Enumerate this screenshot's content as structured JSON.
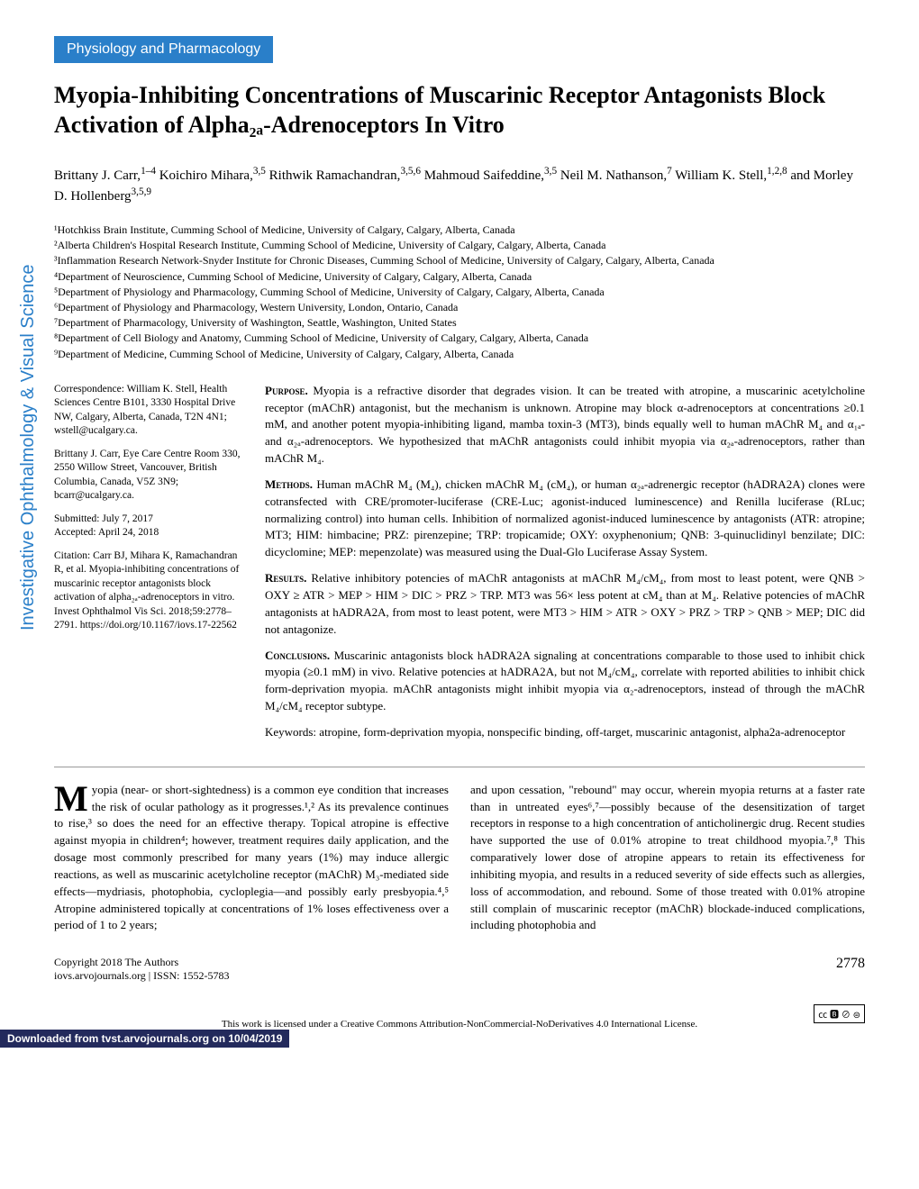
{
  "vertical_label": "Investigative Ophthalmology & Visual Science",
  "section_banner": "Physiology and Pharmacology",
  "title": "Myopia-Inhibiting Concentrations of Muscarinic Receptor Antagonists Block Activation of Alpha₂ₐ-Adrenoceptors In Vitro",
  "authors_html": "Brittany J. Carr,<sup>1–4</sup> Koichiro Mihara,<sup>3,5</sup> Rithwik Ramachandran,<sup>3,5,6</sup> Mahmoud Saifeddine,<sup>3,5</sup> Neil M. Nathanson,<sup>7</sup> William K. Stell,<sup>1,2,8</sup> and Morley D. Hollenberg<sup>3,5,9</sup>",
  "affiliations": [
    "¹Hotchkiss Brain Institute, Cumming School of Medicine, University of Calgary, Calgary, Alberta, Canada",
    "²Alberta Children's Hospital Research Institute, Cumming School of Medicine, University of Calgary, Calgary, Alberta, Canada",
    "³Inflammation Research Network-Snyder Institute for Chronic Diseases, Cumming School of Medicine, University of Calgary, Calgary, Alberta, Canada",
    "⁴Department of Neuroscience, Cumming School of Medicine, University of Calgary, Calgary, Alberta, Canada",
    "⁵Department of Physiology and Pharmacology, Cumming School of Medicine, University of Calgary, Calgary, Alberta, Canada",
    "⁶Department of Physiology and Pharmacology, Western University, London, Ontario, Canada",
    "⁷Department of Pharmacology, University of Washington, Seattle, Washington, United States",
    "⁸Department of Cell Biology and Anatomy, Cumming School of Medicine, University of Calgary, Calgary, Alberta, Canada",
    "⁹Department of Medicine, Cumming School of Medicine, University of Calgary, Calgary, Alberta, Canada"
  ],
  "sidebar": {
    "correspondence": "Correspondence: William K. Stell, Health Sciences Centre B101, 3330 Hospital Drive NW, Calgary, Alberta, Canada, T2N 4N1; wstell@ucalgary.ca.",
    "correspondence2": "Brittany J. Carr, Eye Care Centre Room 330, 2550 Willow Street, Vancouver, British Columbia, Canada, V5Z 3N9; bcarr@ucalgary.ca.",
    "submitted": "Submitted: July 7, 2017",
    "accepted": "Accepted: April 24, 2018",
    "citation": "Citation: Carr BJ, Mihara K, Ramachandran R, et al. Myopia-inhibiting concentrations of muscarinic receptor antagonists block activation of alpha₂ₐ-adrenoceptors in vitro. Invest Ophthalmol Vis Sci. 2018;59:2778–2791. https://doi.org/10.1167/iovs.17-22562"
  },
  "abstract": {
    "purpose_label": "Purpose.",
    "purpose": " Myopia is a refractive disorder that degrades vision. It can be treated with atropine, a muscarinic acetylcholine receptor (mAChR) antagonist, but the mechanism is unknown. Atropine may block α-adrenoceptors at concentrations ≥0.1 mM, and another potent myopia-inhibiting ligand, mamba toxin-3 (MT3), binds equally well to human mAChR M₄ and α₁ₐ- and α₂ₐ-adrenoceptors. We hypothesized that mAChR antagonists could inhibit myopia via α₂ₐ-adrenoceptors, rather than mAChR M₄.",
    "methods_label": "Methods.",
    "methods": " Human mAChR M₄ (M₄), chicken mAChR M₄ (cM₄), or human α₂ₐ-adrenergic receptor (hADRA2A) clones were cotransfected with CRE/promoter-luciferase (CRE-Luc; agonist-induced luminescence) and Renilla luciferase (RLuc; normalizing control) into human cells. Inhibition of normalized agonist-induced luminescence by antagonists (ATR: atropine; MT3; HIM: himbacine; PRZ: pirenzepine; TRP: tropicamide; OXY: oxyphenonium; QNB: 3-quinuclidinyl benzilate; DIC: dicyclomine; MEP: mepenzolate) was measured using the Dual-Glo Luciferase Assay System.",
    "results_label": "Results.",
    "results": " Relative inhibitory potencies of mAChR antagonists at mAChR M₄/cM₄, from most to least potent, were QNB > OXY ≥ ATR > MEP > HIM > DIC > PRZ > TRP. MT3 was 56× less potent at cM₄ than at M₄. Relative potencies of mAChR antagonists at hADRA2A, from most to least potent, were MT3 > HIM > ATR > OXY > PRZ > TRP > QNB > MEP; DIC did not antagonize.",
    "conclusions_label": "Conclusions.",
    "conclusions": " Muscarinic antagonists block hADRA2A signaling at concentrations comparable to those used to inhibit chick myopia (≥0.1 mM) in vivo. Relative potencies at hADRA2A, but not M₄/cM₄, correlate with reported abilities to inhibit chick form-deprivation myopia. mAChR antagonists might inhibit myopia via α₂-adrenoceptors, instead of through the mAChR M₄/cM₄ receptor subtype.",
    "keywords": "Keywords: atropine, form-deprivation myopia, nonspecific binding, off-target, muscarinic antagonist, alpha2a-adrenoceptor"
  },
  "body": {
    "col1_first": "M",
    "col1_rest": "yopia (near- or short-sightedness) is a common eye condition that increases the risk of ocular pathology as it progresses.¹,² As its prevalence continues to rise,³ so does the need for an effective therapy. Topical atropine is effective against myopia in children⁴; however, treatment requires daily application, and the dosage most commonly prescribed for many years (1%) may induce allergic reactions, as well as muscarinic acetylcholine receptor (mAChR) M₃-mediated side effects—mydriasis, photophobia, cycloplegia—and possibly early presbyopia.⁴,⁵ Atropine administered topically at concentrations of 1% loses effectiveness over a period of 1 to 2 years;",
    "col2": "and upon cessation, \"rebound\" may occur, wherein myopia returns at a faster rate than in untreated eyes⁶,⁷—possibly because of the desensitization of target receptors in response to a high concentration of anticholinergic drug. Recent studies have supported the use of 0.01% atropine to treat childhood myopia.⁷,⁸ This comparatively lower dose of atropine appears to retain its effectiveness for inhibiting myopia, and results in a reduced severity of side effects such as allergies, loss of accommodation, and rebound. Some of those treated with 0.01% atropine still complain of muscarinic receptor (mAChR) blockade-induced complications, including photophobia and"
  },
  "footer": {
    "copyright": "Copyright 2018 The Authors",
    "issn": "iovs.arvojournals.org | ISSN: 1552-5783",
    "page": "2778"
  },
  "license_text": "This work is licensed under a Creative Commons Attribution-NonCommercial-NoDerivatives 4.0 International License.",
  "cc_badge": "㏄ 🅱 ⊘ ⊜",
  "download_bar": "Downloaded from tvst.arvojournals.org on 10/04/2019"
}
